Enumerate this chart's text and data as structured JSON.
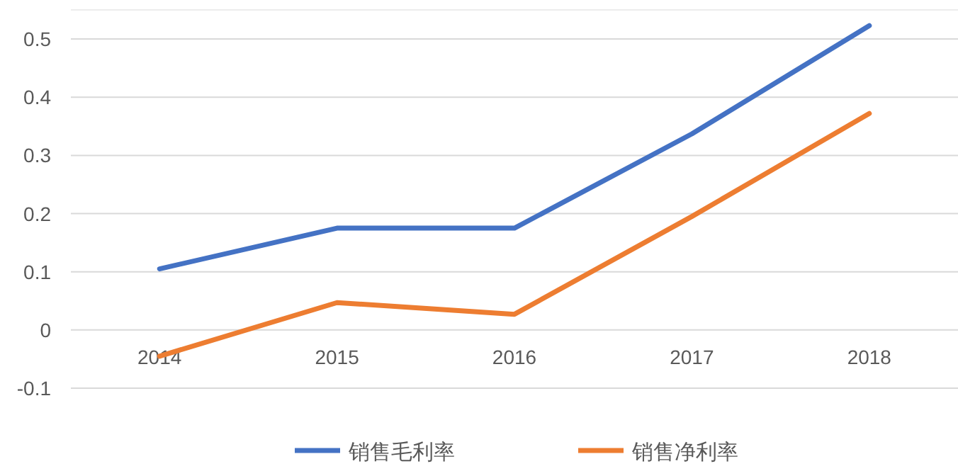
{
  "chart_data": {
    "type": "line",
    "categories": [
      "2014",
      "2015",
      "2016",
      "2017",
      "2018"
    ],
    "series": [
      {
        "name": "销售毛利率",
        "color": "#4472c4",
        "values": [
          0.105,
          0.175,
          0.175,
          0.337,
          0.523
        ]
      },
      {
        "name": "销售净利率",
        "color": "#ed7d31",
        "values": [
          -0.045,
          0.047,
          0.027,
          0.195,
          0.372
        ]
      }
    ],
    "ylim": [
      -0.1,
      0.55
    ],
    "yticks": [
      -0.1,
      0,
      0.1,
      0.2,
      0.3,
      0.4,
      0.5
    ],
    "grid": "y",
    "legend": "bottom",
    "marker": "none",
    "line_style": "solid"
  }
}
